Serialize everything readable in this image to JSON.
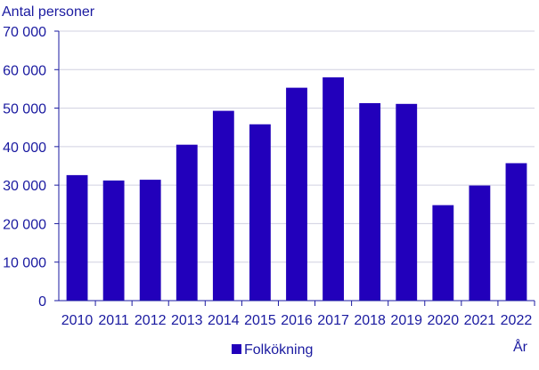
{
  "chart_data": {
    "type": "bar",
    "title": "",
    "ylabel": "Antal personer",
    "xlabel": "År",
    "categories": [
      "2010",
      "2011",
      "2012",
      "2013",
      "2014",
      "2015",
      "2016",
      "2017",
      "2018",
      "2019",
      "2020",
      "2021",
      "2022"
    ],
    "series": [
      {
        "name": "Folkökning",
        "values": [
          32600,
          31200,
          31400,
          40500,
          49300,
          45800,
          55300,
          58000,
          51300,
          51100,
          24800,
          29900,
          35700
        ]
      }
    ],
    "ylim": [
      0,
      70000
    ],
    "yticks": [
      0,
      10000,
      20000,
      30000,
      40000,
      50000,
      60000,
      70000
    ],
    "ytick_labels": [
      "0",
      "10 000",
      "20 000",
      "30 000",
      "40 000",
      "50 000",
      "60 000",
      "70 000"
    ],
    "grid": "horizontal",
    "legend_position": "bottom",
    "colors": {
      "bar": "#2200bb",
      "text": "#1a1aa0",
      "grid": "#d0d0e0",
      "axis": "#1a1aa0"
    }
  }
}
